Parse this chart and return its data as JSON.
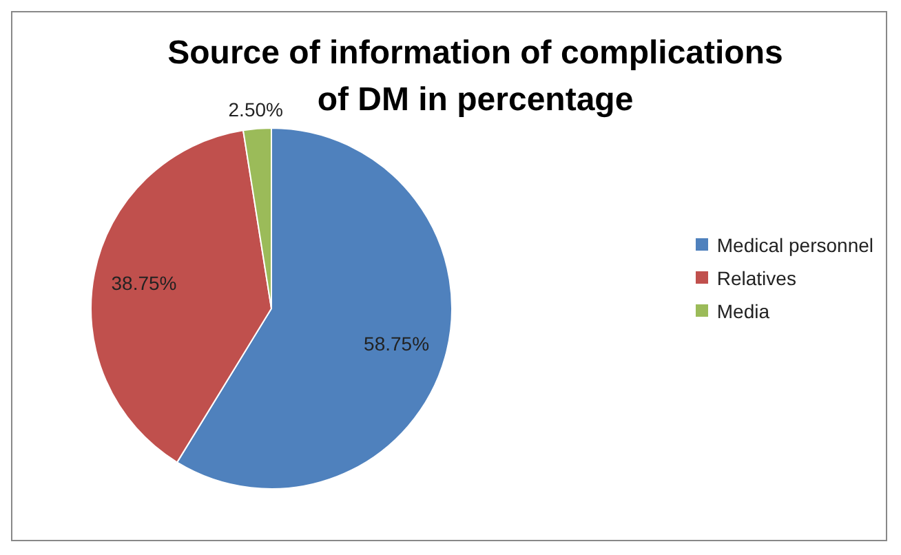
{
  "chart_data": {
    "type": "pie",
    "title": "Source of information of complications of DM in percentage",
    "categories": [
      "Medical personnel",
      "Relatives",
      "Media"
    ],
    "values": [
      58.75,
      38.75,
      2.5
    ],
    "value_labels": [
      "58.75%",
      "38.75%",
      "2.50%"
    ],
    "colors": [
      "#4f81bd",
      "#c0504d",
      "#9bbb59"
    ],
    "legend": "right"
  }
}
